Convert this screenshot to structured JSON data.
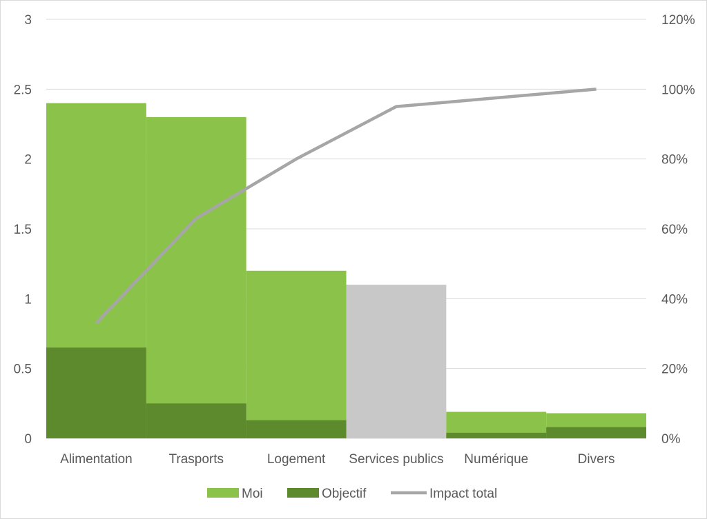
{
  "chart_data": {
    "type": "bar",
    "categories": [
      "Alimentation",
      "Trasports",
      "Logement",
      "Services publics",
      "Numérique",
      "Divers"
    ],
    "series": [
      {
        "name": "Moi",
        "kind": "bar",
        "axis": "left",
        "color": "#8bc34a",
        "values": [
          2.4,
          2.3,
          1.2,
          1.1,
          0.19,
          0.18
        ],
        "point_colors": [
          "#8bc34a",
          "#8bc34a",
          "#8bc34a",
          "#c8c8c8",
          "#8bc34a",
          "#8bc34a"
        ]
      },
      {
        "name": "Objectif",
        "kind": "bar",
        "axis": "left",
        "color": "#5e8a2e",
        "values": [
          0.65,
          0.25,
          0.13,
          0,
          0.04,
          0.08
        ]
      },
      {
        "name": "Impact total",
        "kind": "line",
        "axis": "right",
        "color": "#a6a6a6",
        "values": [
          33,
          63,
          80,
          95,
          97.5,
          100
        ]
      }
    ],
    "y_left": {
      "ylim": [
        0,
        3
      ],
      "ticks": [
        "0",
        "0.5",
        "1",
        "1.5",
        "2",
        "2.5",
        "3"
      ]
    },
    "y_right": {
      "ylim": [
        0,
        120
      ],
      "ticks": [
        "0%",
        "20%",
        "40%",
        "60%",
        "80%",
        "100%",
        "120%"
      ]
    },
    "grid": true,
    "legend": "bottom",
    "legend_items": [
      "Moi",
      "Objectif",
      "Impact total"
    ],
    "title": "",
    "xlabel": "",
    "ylabel": ""
  }
}
